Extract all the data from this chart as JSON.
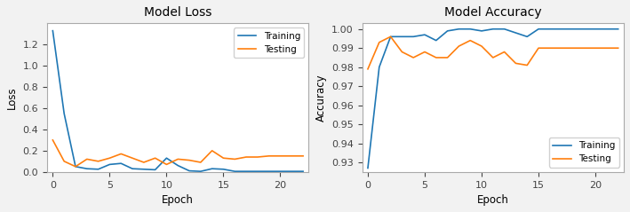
{
  "loss_title": "Model Loss",
  "acc_title": "Model Accuracy",
  "xlabel": "Epoch",
  "loss_ylabel": "Loss",
  "acc_ylabel": "Accuracy",
  "loss_train": [
    1.33,
    0.55,
    0.05,
    0.03,
    0.025,
    0.07,
    0.08,
    0.03,
    0.025,
    0.02,
    0.13,
    0.06,
    0.01,
    0.005,
    0.03,
    0.025,
    0.005,
    0.005,
    0.005,
    0.005,
    0.005,
    0.005,
    0.005
  ],
  "loss_test": [
    0.3,
    0.1,
    0.05,
    0.12,
    0.1,
    0.13,
    0.17,
    0.13,
    0.09,
    0.13,
    0.07,
    0.12,
    0.11,
    0.09,
    0.2,
    0.13,
    0.12,
    0.14,
    0.14,
    0.15,
    0.15,
    0.15,
    0.15
  ],
  "acc_train": [
    0.927,
    0.98,
    0.996,
    0.996,
    0.996,
    0.997,
    0.994,
    0.999,
    1.0,
    1.0,
    0.999,
    1.0,
    1.0,
    0.998,
    0.996,
    1.0,
    1.0,
    1.0,
    1.0,
    1.0,
    1.0,
    1.0,
    1.0
  ],
  "acc_test": [
    0.979,
    0.993,
    0.996,
    0.988,
    0.985,
    0.988,
    0.985,
    0.985,
    0.991,
    0.994,
    0.991,
    0.985,
    0.988,
    0.982,
    0.981,
    0.99,
    0.99,
    0.99,
    0.99,
    0.99,
    0.99,
    0.99,
    0.99
  ],
  "color_train": "#1f77b4",
  "color_test": "#ff7f0e",
  "legend_train": "Training",
  "legend_test": "Testing",
  "loss_ylim": [
    0.0,
    1.4
  ],
  "loss_yticks": [
    0.0,
    0.2,
    0.4,
    0.6,
    0.8,
    1.0,
    1.2
  ],
  "acc_ylim": [
    0.925,
    1.003
  ],
  "acc_yticks": [
    0.93,
    0.94,
    0.95,
    0.96,
    0.97,
    0.98,
    0.99,
    1.0
  ],
  "xticks": [
    0,
    5,
    10,
    15,
    20
  ],
  "figsize": [
    7.09,
    2.39
  ],
  "dpi": 100,
  "bg_color": "#f2f2f2",
  "spine_color": "#aaaaaa",
  "linewidth": 1.2,
  "legend_fontsize": 7.5,
  "title_fontsize": 10,
  "label_fontsize": 8.5,
  "tick_fontsize": 8
}
